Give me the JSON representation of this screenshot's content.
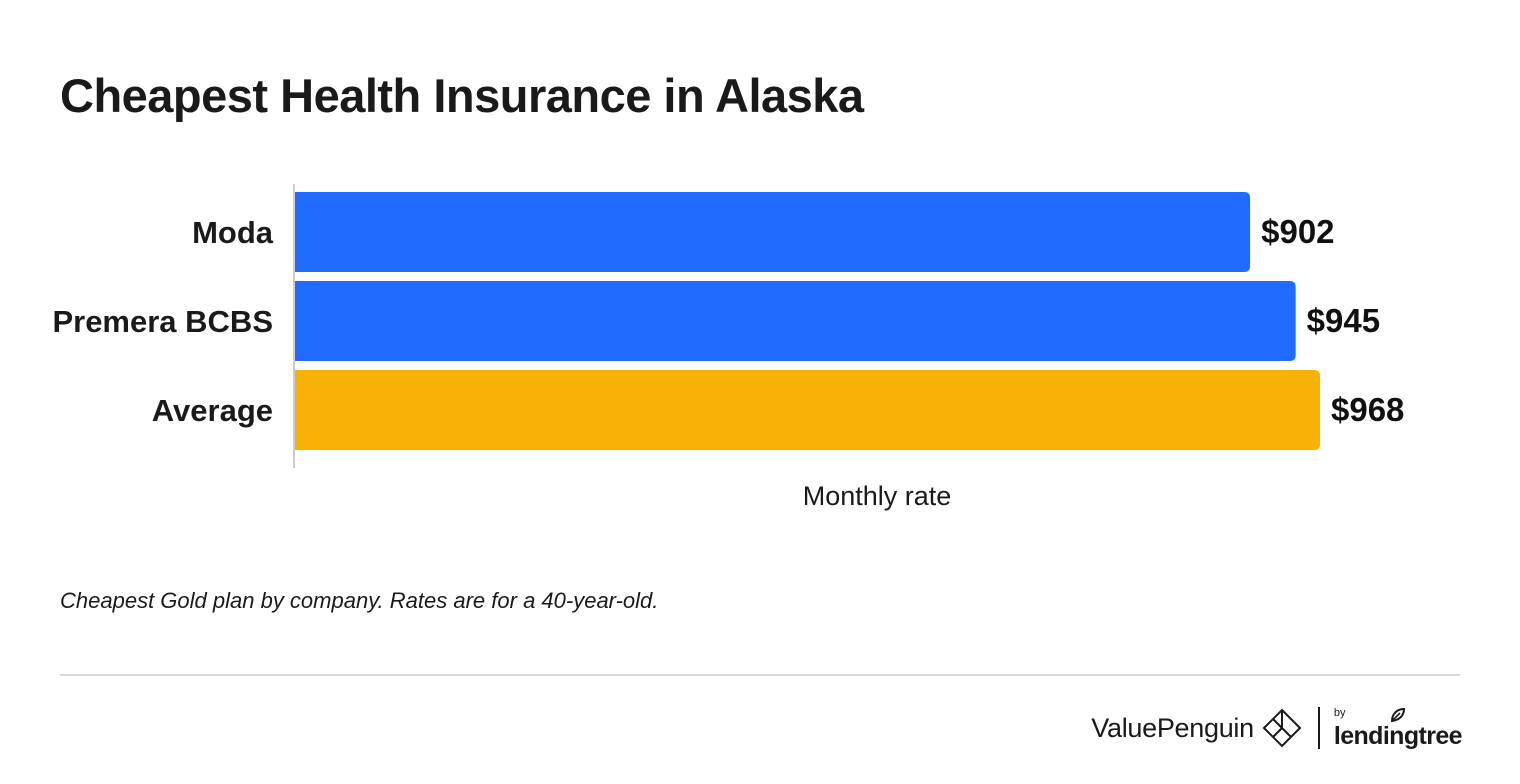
{
  "title": "Cheapest Health Insurance in Alaska",
  "footnote": "Cheapest Gold plan by company. Rates are for a 40-year-old.",
  "brand": {
    "name": "ValuePenguin",
    "logo_icon": "valuepenguin-diamond-icon",
    "partner_prefix": "by",
    "partner_name": "lendingtree",
    "partner_icon": "leaf-icon"
  },
  "colors": {
    "company_bar": "#216cff",
    "average_bar": "#f8b106",
    "axis_line": "#cccccc",
    "divider": "#d9d9d9"
  },
  "chart_data": {
    "type": "bar",
    "orientation": "horizontal",
    "categories": [
      "Moda",
      "Premera BCBS",
      "Average"
    ],
    "values": [
      902,
      945,
      968
    ],
    "value_labels": [
      "$902",
      "$945",
      "$968"
    ],
    "bar_colors": [
      "#216cff",
      "#216cff",
      "#f8b106"
    ],
    "xlabel": "Monthly rate",
    "ylabel": "",
    "xlim": [
      0,
      968
    ],
    "grid": false,
    "legend": "none"
  }
}
